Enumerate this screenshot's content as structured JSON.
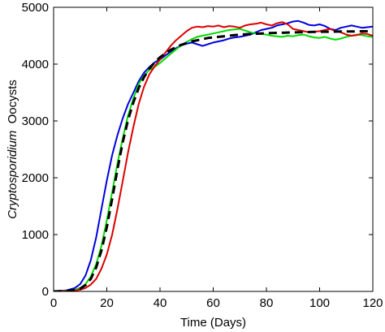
{
  "chart_data": {
    "type": "line",
    "xlabel": "Time (Days)",
    "ylabel_italic": "Cryptosporidium",
    "ylabel_rest": "Oocysts",
    "xlim": [
      0,
      120
    ],
    "ylim": [
      0,
      5000
    ],
    "xticks": [
      "0",
      "20",
      "40",
      "60",
      "80",
      "100",
      "120"
    ],
    "yticks": [
      "0",
      "1000",
      "2000",
      "3000",
      "4000",
      "5000"
    ],
    "grid": false,
    "legend": "none",
    "series": [
      {
        "color": "#0000dd",
        "style": "solid",
        "x": [
          0,
          5,
          8,
          10,
          12,
          14,
          16,
          18,
          20,
          22,
          24,
          26,
          28,
          30,
          32,
          34,
          36,
          38,
          40,
          42,
          44,
          46,
          48,
          50,
          52,
          54,
          56,
          58,
          60,
          62,
          64,
          66,
          68,
          70,
          72,
          74,
          76,
          78,
          80,
          82,
          84,
          86,
          88,
          90,
          92,
          94,
          96,
          98,
          100,
          102,
          104,
          106,
          108,
          110,
          112,
          114,
          116,
          118,
          120
        ],
        "y": [
          0,
          20,
          60,
          130,
          280,
          550,
          950,
          1450,
          1950,
          2400,
          2750,
          3050,
          3300,
          3500,
          3700,
          3850,
          3950,
          4030,
          4080,
          4150,
          4220,
          4280,
          4330,
          4360,
          4380,
          4350,
          4320,
          4350,
          4380,
          4400,
          4420,
          4450,
          4470,
          4480,
          4500,
          4520,
          4560,
          4600,
          4620,
          4640,
          4680,
          4700,
          4720,
          4750,
          4760,
          4730,
          4690,
          4680,
          4700,
          4670,
          4620,
          4600,
          4640,
          4660,
          4680,
          4660,
          4640,
          4650,
          4660
        ]
      },
      {
        "color": "#00dd00",
        "style": "solid",
        "x": [
          0,
          5,
          8,
          10,
          12,
          14,
          16,
          18,
          20,
          22,
          24,
          26,
          28,
          30,
          32,
          34,
          36,
          38,
          40,
          42,
          44,
          46,
          48,
          50,
          52,
          54,
          56,
          58,
          60,
          62,
          64,
          66,
          68,
          70,
          72,
          74,
          76,
          78,
          80,
          82,
          84,
          86,
          88,
          90,
          92,
          94,
          96,
          98,
          100,
          102,
          104,
          106,
          108,
          110,
          112,
          114,
          116,
          118,
          120
        ],
        "y": [
          0,
          10,
          30,
          60,
          130,
          260,
          480,
          800,
          1250,
          1750,
          2250,
          2700,
          3100,
          3400,
          3650,
          3800,
          3900,
          3950,
          4020,
          4100,
          4180,
          4260,
          4330,
          4390,
          4440,
          4480,
          4500,
          4520,
          4540,
          4560,
          4580,
          4600,
          4610,
          4620,
          4590,
          4560,
          4540,
          4530,
          4520,
          4500,
          4490,
          4480,
          4500,
          4490,
          4510,
          4520,
          4490,
          4470,
          4460,
          4480,
          4450,
          4430,
          4450,
          4480,
          4500,
          4520,
          4510,
          4490,
          4480
        ]
      },
      {
        "color": "#dd0000",
        "style": "solid",
        "x": [
          0,
          5,
          8,
          10,
          12,
          14,
          16,
          18,
          20,
          22,
          24,
          26,
          28,
          30,
          32,
          34,
          36,
          38,
          40,
          42,
          44,
          46,
          48,
          50,
          52,
          54,
          56,
          58,
          60,
          62,
          64,
          66,
          68,
          70,
          72,
          74,
          76,
          78,
          80,
          82,
          84,
          86,
          88,
          90,
          92,
          94,
          96,
          98,
          100,
          102,
          104,
          106,
          108,
          110,
          112,
          114,
          116,
          118,
          120
        ],
        "y": [
          0,
          5,
          15,
          30,
          60,
          120,
          220,
          400,
          650,
          1000,
          1450,
          1950,
          2450,
          2900,
          3300,
          3600,
          3820,
          3960,
          4080,
          4200,
          4320,
          4420,
          4500,
          4580,
          4640,
          4660,
          4650,
          4670,
          4660,
          4680,
          4650,
          4670,
          4660,
          4640,
          4680,
          4700,
          4710,
          4730,
          4700,
          4680,
          4720,
          4740,
          4700,
          4620,
          4600,
          4580,
          4560,
          4570,
          4580,
          4600,
          4620,
          4580,
          4560,
          4520,
          4500,
          4510,
          4540,
          4530,
          4500
        ]
      },
      {
        "color": "#000000",
        "style": "dashed",
        "x": [
          0,
          5,
          8,
          10,
          12,
          14,
          16,
          18,
          20,
          22,
          24,
          26,
          28,
          30,
          32,
          34,
          36,
          38,
          40,
          42,
          44,
          46,
          48,
          50,
          52,
          54,
          56,
          58,
          60,
          62,
          64,
          66,
          68,
          70,
          72,
          74,
          76,
          78,
          80,
          84,
          88,
          92,
          96,
          100,
          104,
          108,
          112,
          116,
          120
        ],
        "y": [
          0,
          10,
          25,
          50,
          110,
          220,
          420,
          720,
          1130,
          1630,
          2150,
          2630,
          3020,
          3330,
          3580,
          3770,
          3920,
          4030,
          4120,
          4190,
          4250,
          4300,
          4340,
          4370,
          4400,
          4420,
          4440,
          4460,
          4470,
          4480,
          4490,
          4500,
          4510,
          4520,
          4525,
          4530,
          4535,
          4540,
          4545,
          4550,
          4555,
          4560,
          4565,
          4570,
          4570,
          4575,
          4575,
          4578,
          4580
        ]
      }
    ]
  }
}
